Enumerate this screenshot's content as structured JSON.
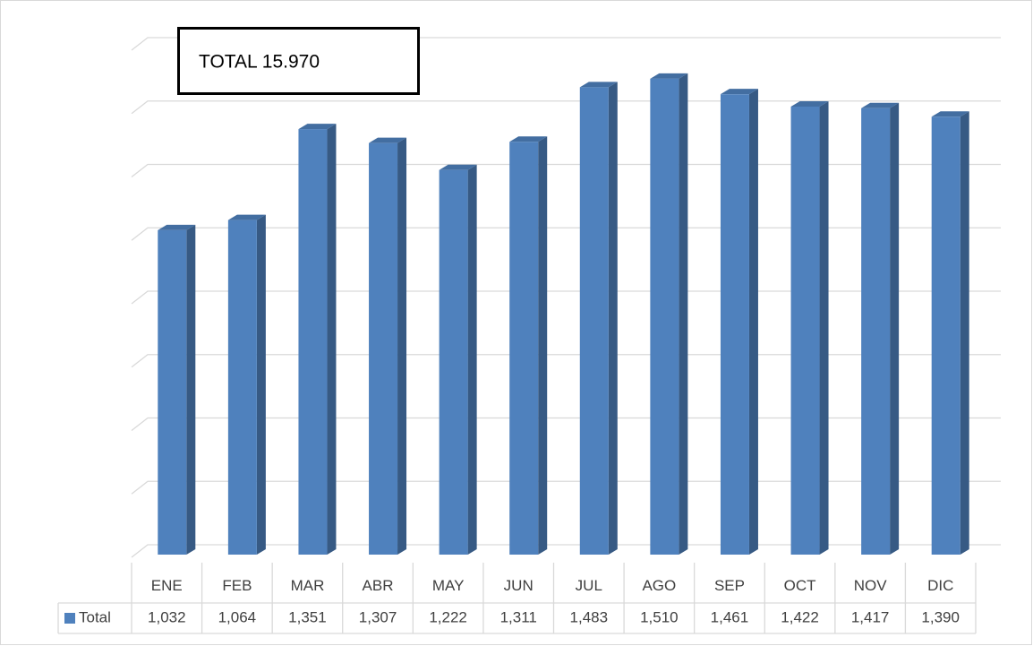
{
  "chart_data": {
    "type": "bar3d",
    "annotation": "TOTAL 15.970",
    "categories": [
      "ENE",
      "FEB",
      "MAR",
      "ABR",
      "MAY",
      "JUN",
      "JUL",
      "AGO",
      "SEP",
      "OCT",
      "NOV",
      "DIC"
    ],
    "series": [
      {
        "name": "Total",
        "color": "#4f81bd",
        "values": [
          1032,
          1064,
          1351,
          1307,
          1222,
          1311,
          1483,
          1510,
          1461,
          1422,
          1417,
          1390
        ],
        "value_labels": [
          "1,032",
          "1,064",
          "1,351",
          "1,307",
          "1,222",
          "1,311",
          "1,483",
          "1,510",
          "1,461",
          "1,422",
          "1,417",
          "1,390"
        ]
      }
    ],
    "ylim": [
      0,
      1600
    ],
    "yticks": [
      0,
      200,
      400,
      600,
      800,
      1000,
      1200,
      1400,
      1600
    ],
    "grid": true
  }
}
